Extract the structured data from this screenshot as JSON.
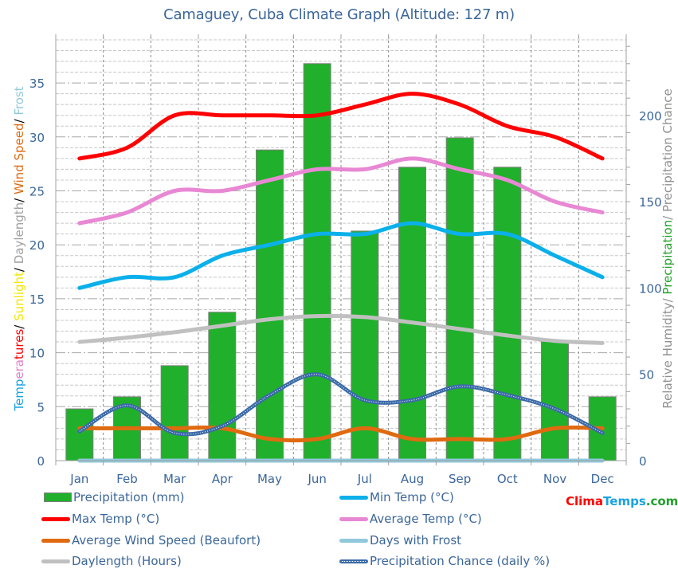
{
  "title": "Camaguey, Cuba Climate Graph (Altitude: 127 m)",
  "axes": {
    "left_label_parts": [
      {
        "text": "Temperatures",
        "color": "#e07fd0",
        "color_start": "#1aa3e0"
      },
      {
        "text": "/ ",
        "color": "#000000"
      },
      {
        "text": "Sunlight",
        "color": "#f2e600"
      },
      {
        "text": "/ ",
        "color": "#000000"
      },
      {
        "text": "Daylength",
        "color": "#a0a0a0"
      },
      {
        "text": "/ ",
        "color": "#000000"
      },
      {
        "text": "Wind Speed",
        "color": "#e06a10"
      },
      {
        "text": "/ ",
        "color": "#000000"
      },
      {
        "text": "Frost",
        "color": "#90c8dc"
      }
    ],
    "right_label_parts": [
      {
        "text": "Relative Humidity",
        "color": "#909090"
      },
      {
        "text": "/ ",
        "color": "#909090"
      },
      {
        "text": "Precipitation",
        "color": "#22a22a"
      },
      {
        "text": "/ ",
        "color": "#909090"
      },
      {
        "text": "Precipitation Chance",
        "color": "#909090"
      }
    ],
    "left_ticks": [
      "0",
      "5",
      "10",
      "15",
      "20",
      "25",
      "30",
      "35"
    ],
    "right_ticks": [
      "0",
      "50",
      "100",
      "150",
      "200"
    ]
  },
  "legend": {
    "items": [
      {
        "label": "Precipitation (mm)",
        "type": "bar",
        "color": "#21b02b"
      },
      {
        "label": "Min Temp (°C)",
        "type": "line",
        "color": "#0bb0ea"
      },
      {
        "label": "Max Temp (°C)",
        "type": "line",
        "color": "#ff0000"
      },
      {
        "label": "Average Temp (°C)",
        "type": "line",
        "color": "#e888d4"
      },
      {
        "label": "Average Wind Speed (Beaufort)",
        "type": "line",
        "color": "#e06a10"
      },
      {
        "label": "Days with Frost",
        "type": "line",
        "color": "#90c8dc"
      },
      {
        "label": "Daylength (Hours)",
        "type": "line",
        "color": "#c0c0c0"
      },
      {
        "label": "Precipitation Chance (daily %)",
        "type": "dotted",
        "color": "#3b6aa8"
      }
    ]
  },
  "brand": {
    "part1": "Clima",
    "part2": "Temps",
    "part3": ".com",
    "color1": "#ff0000",
    "color2": "#1aa3e0",
    "color3": "#21a02b"
  },
  "chart_data": {
    "type": "bar",
    "title": "Camaguey, Cuba Climate Graph (Altitude: 127 m)",
    "categories": [
      "Jan",
      "Feb",
      "Mar",
      "Apr",
      "May",
      "Jun",
      "Jul",
      "Aug",
      "Sep",
      "Oct",
      "Nov",
      "Dec"
    ],
    "xlabel": "",
    "ylabel_left": "Temperatures/ Sunlight/ Daylength/ Wind Speed/ Frost",
    "ylabel_right": "Relative Humidity/ Precipitation/ Precipitation Chance",
    "ylim_left": [
      0,
      39
    ],
    "ylim_right": [
      0,
      246
    ],
    "grid": true,
    "legend_position": "bottom",
    "series": [
      {
        "name": "Precipitation (mm)",
        "type": "bar",
        "axis": "right",
        "color": "#21b02b",
        "values": [
          30,
          37,
          55,
          86,
          180,
          230,
          133,
          170,
          187,
          170,
          69,
          37
        ]
      },
      {
        "name": "Min Temp (°C)",
        "type": "line",
        "axis": "left",
        "color": "#0bb0ea",
        "values": [
          16,
          17,
          17,
          19,
          20,
          21,
          21,
          22,
          21,
          21,
          19,
          17
        ]
      },
      {
        "name": "Max Temp (°C)",
        "type": "line",
        "axis": "left",
        "color": "#ff0000",
        "values": [
          28,
          29,
          32,
          32,
          32,
          32,
          33,
          34,
          33,
          31,
          30,
          28
        ]
      },
      {
        "name": "Average Temp (°C)",
        "type": "line",
        "axis": "left",
        "color": "#e888d4",
        "values": [
          22,
          23,
          25,
          25,
          26,
          27,
          27,
          28,
          27,
          26,
          24,
          23
        ]
      },
      {
        "name": "Average Wind Speed (Beaufort)",
        "type": "line",
        "axis": "left",
        "color": "#e06a10",
        "values": [
          3,
          3,
          3,
          3,
          2,
          2,
          3,
          2,
          2,
          2,
          3,
          3
        ]
      },
      {
        "name": "Days with Frost",
        "type": "line",
        "axis": "left",
        "color": "#90c8dc",
        "values": [
          0,
          0,
          0,
          0,
          0,
          0,
          0,
          0,
          0,
          0,
          0,
          0
        ]
      },
      {
        "name": "Daylength (Hours)",
        "type": "line",
        "axis": "left",
        "color": "#c0c0c0",
        "values": [
          11.0,
          11.4,
          11.9,
          12.5,
          13.1,
          13.4,
          13.3,
          12.8,
          12.2,
          11.6,
          11.1,
          10.9
        ]
      },
      {
        "name": "Precipitation Chance (daily %)",
        "type": "line",
        "axis": "right",
        "color": "#3b6aa8",
        "values": [
          17,
          32,
          16,
          20,
          38,
          50,
          35,
          35,
          43,
          38,
          30,
          16
        ]
      }
    ]
  }
}
